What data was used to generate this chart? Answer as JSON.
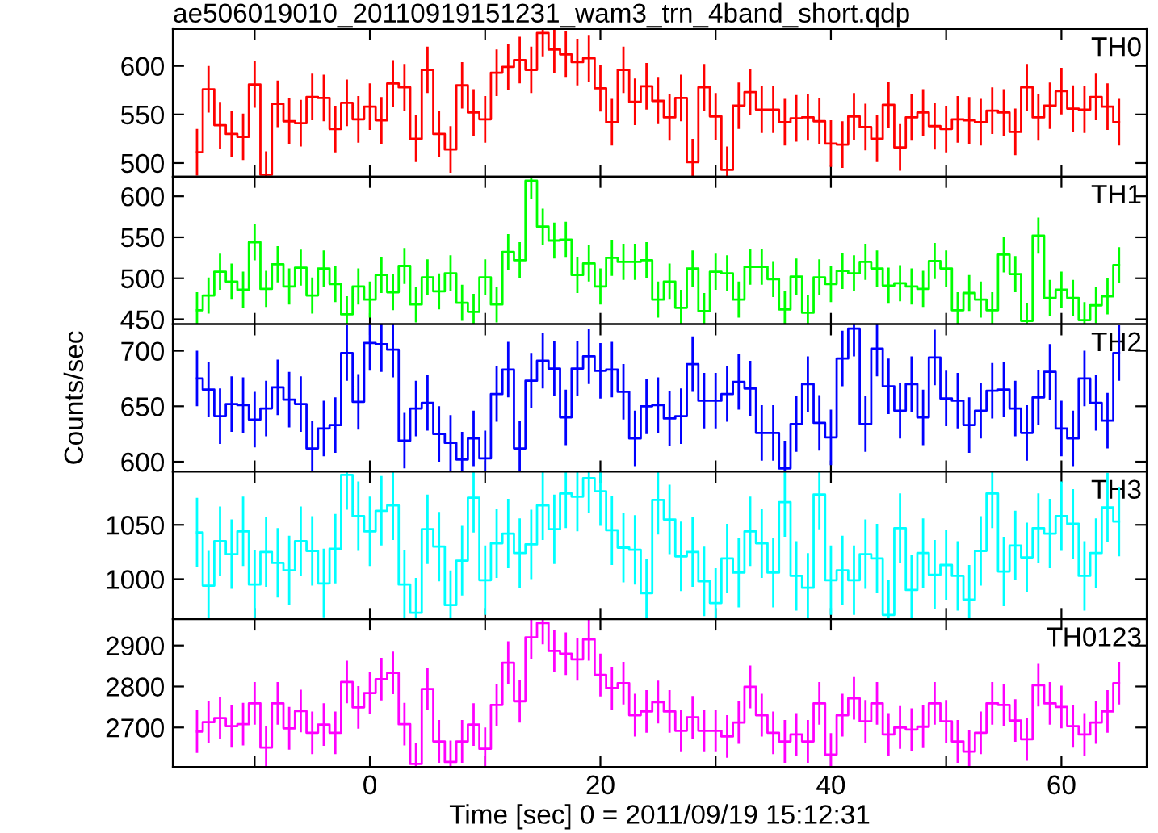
{
  "chart_data": [
    {
      "type": "step",
      "title": "ae506019010_20110919151231_wam3_trn_4band_short.qdp",
      "annotations": [
        "TH0"
      ],
      "x": [
        -15,
        -14,
        -13,
        -12,
        -11,
        -10,
        -9,
        -8,
        -7,
        -6,
        -5,
        -4,
        -3,
        -2,
        -1,
        0,
        1,
        2,
        3,
        4,
        5,
        6,
        7,
        8,
        9,
        10,
        11,
        12,
        13,
        14,
        15,
        16,
        17,
        18,
        19,
        20,
        21,
        22,
        23,
        24,
        25,
        26,
        27,
        28,
        29,
        30,
        31,
        32,
        33,
        34,
        35,
        36,
        37,
        38,
        39,
        40,
        41,
        42,
        43,
        44,
        45,
        46,
        47,
        48,
        49,
        50,
        51,
        52,
        53,
        54,
        55,
        56,
        57,
        58,
        59,
        60,
        61,
        62,
        63,
        64,
        65
      ],
      "series": [
        {
          "color": "#ff0000",
          "values": [
            511,
            576,
            539,
            530,
            527,
            581,
            488,
            561,
            543,
            541,
            568,
            567,
            535,
            562,
            545,
            558,
            544,
            582,
            578,
            525,
            596,
            530,
            514,
            580,
            552,
            545,
            593,
            599,
            606,
            596,
            634,
            617,
            612,
            604,
            608,
            577,
            542,
            596,
            563,
            579,
            564,
            547,
            567,
            501,
            578,
            548,
            493,
            559,
            573,
            555,
            555,
            542,
            546,
            547,
            543,
            520,
            519,
            548,
            537,
            525,
            560,
            516,
            547,
            552,
            538,
            535,
            545,
            544,
            542,
            554,
            552,
            532,
            578,
            547,
            559,
            574,
            556,
            555,
            568,
            558,
            542
          ],
          "errors": [
            24,
            24,
            24,
            24,
            24,
            24,
            24,
            24,
            24,
            24,
            24,
            24,
            24,
            24,
            24,
            24,
            24,
            24,
            24,
            24,
            24,
            24,
            24,
            24,
            24,
            24,
            24,
            24,
            24,
            24,
            24,
            24,
            24,
            24,
            24,
            24,
            24,
            24,
            24,
            24,
            24,
            24,
            24,
            24,
            24,
            24,
            24,
            24,
            24,
            24,
            24,
            24,
            24,
            24,
            24,
            24,
            24,
            24,
            24,
            24,
            24,
            24,
            24,
            24,
            24,
            24,
            24,
            24,
            24,
            24,
            24,
            24,
            24,
            24,
            24,
            24,
            24,
            24,
            24,
            24,
            24
          ]
        }
      ],
      "xlim": [
        -17.1,
        67.4
      ],
      "xticks": [
        {
          "value": -10,
          "label": null
        },
        {
          "value": 0,
          "label": null
        },
        {
          "value": 10,
          "label": null
        },
        {
          "value": 20,
          "label": null
        },
        {
          "value": 30,
          "label": null
        },
        {
          "value": 40,
          "label": null
        },
        {
          "value": 50,
          "label": null
        },
        {
          "value": 60,
          "label": null
        }
      ],
      "ylim": [
        486,
        638
      ],
      "yticks": [
        500,
        550,
        600
      ],
      "tick_labels": "y",
      "grid": false,
      "legend": false
    },
    {
      "type": "step",
      "annotations": [
        "TH1"
      ],
      "x": [
        -15,
        -14,
        -13,
        -12,
        -11,
        -10,
        -9,
        -8,
        -7,
        -6,
        -5,
        -4,
        -3,
        -2,
        -1,
        0,
        1,
        2,
        3,
        4,
        5,
        6,
        7,
        8,
        9,
        10,
        11,
        12,
        13,
        14,
        15,
        16,
        17,
        18,
        19,
        20,
        21,
        22,
        23,
        24,
        25,
        26,
        27,
        28,
        29,
        30,
        31,
        32,
        33,
        34,
        35,
        36,
        37,
        38,
        39,
        40,
        41,
        42,
        43,
        44,
        45,
        46,
        47,
        48,
        49,
        50,
        51,
        52,
        53,
        54,
        55,
        56,
        57,
        58,
        59,
        60,
        61,
        62,
        63,
        64,
        65
      ],
      "series": [
        {
          "color": "#00ff00",
          "values": [
            461,
            479,
            508,
            496,
            486,
            544,
            487,
            517,
            490,
            513,
            479,
            512,
            493,
            456,
            490,
            474,
            504,
            483,
            515,
            468,
            501,
            484,
            506,
            470,
            459,
            501,
            468,
            532,
            522,
            619,
            563,
            546,
            547,
            504,
            518,
            490,
            525,
            520,
            520,
            522,
            474,
            496,
            464,
            512,
            460,
            508,
            506,
            474,
            514,
            514,
            499,
            462,
            502,
            458,
            501,
            493,
            509,
            506,
            520,
            512,
            491,
            494,
            490,
            487,
            521,
            512,
            461,
            482,
            474,
            461,
            529,
            505,
            448,
            552,
            476,
            486,
            476,
            449,
            467,
            478,
            516
          ],
          "errors": [
            22,
            22,
            22,
            22,
            22,
            22,
            22,
            22,
            22,
            22,
            22,
            22,
            22,
            22,
            22,
            22,
            22,
            22,
            22,
            22,
            22,
            22,
            22,
            22,
            22,
            22,
            22,
            22,
            22,
            22,
            22,
            22,
            22,
            22,
            22,
            22,
            22,
            22,
            22,
            22,
            22,
            22,
            22,
            22,
            22,
            22,
            22,
            22,
            22,
            22,
            22,
            22,
            22,
            22,
            22,
            22,
            22,
            22,
            22,
            22,
            22,
            22,
            22,
            22,
            22,
            22,
            22,
            22,
            22,
            22,
            22,
            22,
            22,
            22,
            22,
            22,
            22,
            22,
            22,
            22,
            22
          ]
        }
      ],
      "xlim": [
        -17.1,
        67.4
      ],
      "xticks": [
        {
          "value": -10,
          "label": null
        },
        {
          "value": 0,
          "label": null
        },
        {
          "value": 10,
          "label": null
        },
        {
          "value": 20,
          "label": null
        },
        {
          "value": 30,
          "label": null
        },
        {
          "value": 40,
          "label": null
        },
        {
          "value": 50,
          "label": null
        },
        {
          "value": 60,
          "label": null
        }
      ],
      "ylim": [
        444,
        624
      ],
      "yticks": [
        450,
        500,
        550,
        600
      ],
      "tick_labels": "y",
      "grid": false,
      "legend": false
    },
    {
      "type": "step",
      "annotations": [
        "TH2"
      ],
      "ylabel": "Counts/sec",
      "x": [
        -15,
        -14,
        -13,
        -12,
        -11,
        -10,
        -9,
        -8,
        -7,
        -6,
        -5,
        -4,
        -3,
        -2,
        -1,
        0,
        1,
        2,
        3,
        4,
        5,
        6,
        7,
        8,
        9,
        10,
        11,
        12,
        13,
        14,
        15,
        16,
        17,
        18,
        19,
        20,
        21,
        22,
        23,
        24,
        25,
        26,
        27,
        28,
        29,
        30,
        31,
        32,
        33,
        34,
        35,
        36,
        37,
        38,
        39,
        40,
        41,
        42,
        43,
        44,
        45,
        46,
        47,
        48,
        49,
        50,
        51,
        52,
        53,
        54,
        55,
        56,
        57,
        58,
        59,
        60,
        61,
        62,
        63,
        64,
        65
      ],
      "series": [
        {
          "color": "#0000ff",
          "values": [
            675,
            665,
            641,
            652,
            651,
            638,
            648,
            667,
            656,
            652,
            612,
            630,
            633,
            698,
            654,
            707,
            706,
            701,
            619,
            648,
            653,
            625,
            617,
            602,
            621,
            603,
            661,
            683,
            612,
            673,
            691,
            684,
            640,
            684,
            695,
            682,
            683,
            663,
            621,
            650,
            651,
            639,
            641,
            688,
            655,
            655,
            661,
            672,
            666,
            626,
            626,
            594,
            634,
            670,
            635,
            622,
            693,
            720,
            634,
            702,
            668,
            646,
            670,
            640,
            694,
            657,
            655,
            633,
            646,
            664,
            665,
            648,
            626,
            658,
            681,
            630,
            621,
            675,
            653,
            637,
            698
          ],
          "errors": [
            25,
            25,
            25,
            25,
            25,
            25,
            25,
            25,
            25,
            25,
            25,
            25,
            25,
            25,
            25,
            25,
            25,
            25,
            25,
            25,
            25,
            25,
            25,
            25,
            25,
            25,
            25,
            25,
            25,
            25,
            25,
            25,
            25,
            25,
            25,
            25,
            25,
            25,
            25,
            25,
            25,
            25,
            25,
            25,
            25,
            25,
            25,
            25,
            25,
            25,
            25,
            25,
            25,
            25,
            25,
            25,
            25,
            25,
            25,
            25,
            25,
            25,
            25,
            25,
            25,
            25,
            25,
            25,
            25,
            25,
            25,
            25,
            25,
            25,
            25,
            25,
            25,
            25,
            25,
            25,
            25
          ]
        }
      ],
      "xlim": [
        -17.1,
        67.4
      ],
      "xticks": [
        {
          "value": -10,
          "label": null
        },
        {
          "value": 0,
          "label": null
        },
        {
          "value": 10,
          "label": null
        },
        {
          "value": 20,
          "label": null
        },
        {
          "value": 30,
          "label": null
        },
        {
          "value": 40,
          "label": null
        },
        {
          "value": 50,
          "label": null
        },
        {
          "value": 60,
          "label": null
        }
      ],
      "ylim": [
        591,
        724
      ],
      "yticks": [
        600,
        650,
        700
      ],
      "tick_labels": "y",
      "grid": false,
      "legend": false
    },
    {
      "type": "step",
      "annotations": [
        "TH3"
      ],
      "x": [
        -15,
        -14,
        -13,
        -12,
        -11,
        -10,
        -9,
        -8,
        -7,
        -6,
        -5,
        -4,
        -3,
        -2,
        -1,
        0,
        1,
        2,
        3,
        4,
        5,
        6,
        7,
        8,
        9,
        10,
        11,
        12,
        13,
        14,
        15,
        16,
        17,
        18,
        19,
        20,
        21,
        22,
        23,
        24,
        25,
        26,
        27,
        28,
        29,
        30,
        31,
        32,
        33,
        34,
        35,
        36,
        37,
        38,
        39,
        40,
        41,
        42,
        43,
        44,
        45,
        46,
        47,
        48,
        49,
        50,
        51,
        52,
        53,
        54,
        55,
        56,
        57,
        58,
        59,
        60,
        61,
        62,
        63,
        64,
        65
      ],
      "series": [
        {
          "color": "#00ffff",
          "values": [
            1043,
            994,
            1035,
            1023,
            1044,
            995,
            1025,
            1015,
            1008,
            1035,
            1026,
            996,
            1028,
            1096,
            1058,
            1044,
            1063,
            1068,
            995,
            969,
            1046,
            1030,
            976,
            1017,
            1075,
            999,
            1033,
            1042,
            1024,
            1032,
            1068,
            1046,
            1079,
            1076,
            1093,
            1081,
            1045,
            1029,
            1027,
            987,
            1073,
            1055,
            1021,
            1025,
            998,
            978,
            1019,
            1006,
            1044,
            1033,
            1006,
            1071,
            1003,
            992,
            1078,
            999,
            1008,
            999,
            1023,
            1019,
            967,
            1047,
            990,
            1024,
            1004,
            1013,
            1003,
            981,
            1026,
            1079,
            1007,
            1031,
            1020,
            1047,
            1042,
            1058,
            1051,
            1003,
            1024,
            1066,
            1053
          ],
          "errors": [
            32,
            32,
            32,
            32,
            32,
            32,
            32,
            32,
            32,
            32,
            32,
            32,
            32,
            32,
            32,
            32,
            32,
            32,
            32,
            32,
            32,
            32,
            32,
            32,
            32,
            32,
            32,
            32,
            32,
            32,
            32,
            32,
            32,
            32,
            32,
            32,
            32,
            32,
            32,
            32,
            32,
            32,
            32,
            32,
            32,
            32,
            32,
            32,
            32,
            32,
            32,
            32,
            32,
            32,
            32,
            32,
            32,
            32,
            32,
            32,
            32,
            32,
            32,
            32,
            32,
            32,
            32,
            32,
            32,
            32,
            32,
            32,
            32,
            32,
            32,
            32,
            32,
            32,
            32,
            32,
            32
          ]
        }
      ],
      "xlim": [
        -17.1,
        67.4
      ],
      "xticks": [
        {
          "value": -10,
          "label": null
        },
        {
          "value": 0,
          "label": null
        },
        {
          "value": 10,
          "label": null
        },
        {
          "value": 20,
          "label": null
        },
        {
          "value": 30,
          "label": null
        },
        {
          "value": 40,
          "label": null
        },
        {
          "value": 50,
          "label": null
        },
        {
          "value": 60,
          "label": null
        }
      ],
      "ylim": [
        963,
        1099
      ],
      "yticks": [
        1000,
        1050
      ],
      "tick_labels": "y",
      "grid": false,
      "legend": false
    },
    {
      "type": "step",
      "annotations": [
        "TH0123"
      ],
      "xlabel": "Time [sec] 0 = 2011/09/19 15:12:31",
      "x": [
        -15,
        -14,
        -13,
        -12,
        -11,
        -10,
        -9,
        -8,
        -7,
        -6,
        -5,
        -4,
        -3,
        -2,
        -1,
        0,
        1,
        2,
        3,
        4,
        5,
        6,
        7,
        8,
        9,
        10,
        11,
        12,
        13,
        14,
        15,
        16,
        17,
        18,
        19,
        20,
        21,
        22,
        23,
        24,
        25,
        26,
        27,
        28,
        29,
        30,
        31,
        32,
        33,
        34,
        35,
        36,
        37,
        38,
        39,
        40,
        41,
        42,
        43,
        44,
        45,
        46,
        47,
        48,
        49,
        50,
        51,
        52,
        53,
        54,
        55,
        56,
        57,
        58,
        59,
        60,
        61,
        62,
        63,
        64,
        65
      ],
      "series": [
        {
          "color": "#ff00ff",
          "values": [
            2690,
            2713,
            2723,
            2703,
            2708,
            2759,
            2651,
            2759,
            2698,
            2740,
            2687,
            2707,
            2687,
            2811,
            2749,
            2784,
            2818,
            2833,
            2708,
            2611,
            2794,
            2666,
            2616,
            2666,
            2707,
            2648,
            2755,
            2858,
            2764,
            2920,
            2955,
            2887,
            2880,
            2866,
            2915,
            2828,
            2796,
            2808,
            2730,
            2739,
            2762,
            2739,
            2692,
            2725,
            2692,
            2692,
            2678,
            2712,
            2799,
            2730,
            2687,
            2666,
            2683,
            2666,
            2759,
            2634,
            2730,
            2771,
            2715,
            2759,
            2683,
            2700,
            2695,
            2702,
            2759,
            2715,
            2666,
            2641,
            2687,
            2759,
            2755,
            2717,
            2671,
            2803,
            2759,
            2750,
            2703,
            2683,
            2712,
            2739,
            2808
          ],
          "errors": [
            52,
            52,
            52,
            52,
            52,
            52,
            52,
            52,
            52,
            52,
            52,
            52,
            52,
            52,
            52,
            52,
            52,
            52,
            52,
            52,
            52,
            52,
            52,
            52,
            52,
            52,
            52,
            52,
            52,
            52,
            52,
            52,
            52,
            52,
            52,
            52,
            52,
            52,
            52,
            52,
            52,
            52,
            52,
            52,
            52,
            52,
            52,
            52,
            52,
            52,
            52,
            52,
            52,
            52,
            52,
            52,
            52,
            52,
            52,
            52,
            52,
            52,
            52,
            52,
            52,
            52,
            52,
            52,
            52,
            52,
            52,
            52,
            52,
            52,
            52,
            52,
            52,
            52,
            52,
            52,
            52
          ]
        }
      ],
      "xlim": [
        -17.1,
        67.4
      ],
      "xticks": [
        {
          "value": -10,
          "label": null
        },
        0,
        {
          "value": 10,
          "label": null
        },
        20,
        {
          "value": 30,
          "label": null
        },
        40,
        {
          "value": 50,
          "label": null
        },
        60
      ],
      "ylim": [
        2604,
        2964
      ],
      "yticks": [
        2700,
        2800,
        2900
      ],
      "grid": false,
      "legend": false
    }
  ]
}
